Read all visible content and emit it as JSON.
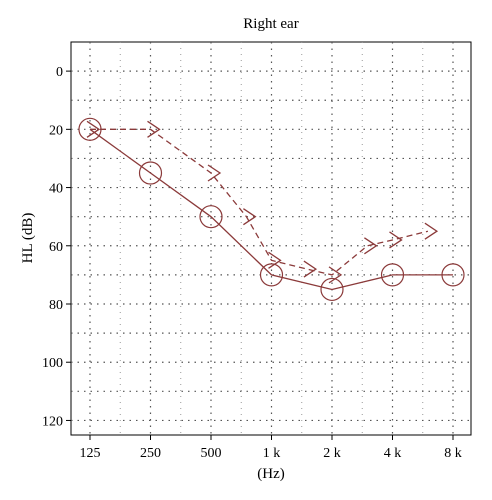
{
  "chart_data": {
    "type": "line",
    "title": "Right ear",
    "xlabel": "(Hz)",
    "ylabel": "HL (dB)",
    "x_categories": [
      "125",
      "250",
      "500",
      "1 k",
      "2 k",
      "4 k",
      "8 k"
    ],
    "y_ticks": [
      0,
      20,
      40,
      60,
      80,
      100,
      120
    ],
    "ylim": [
      -10,
      125
    ],
    "y_inverted": true,
    "grid": true,
    "series_color": "#8b3a3a",
    "series": [
      {
        "marker": "circle",
        "line_style": "solid",
        "x": [
          "125",
          "250",
          "500",
          "1 k",
          "2 k",
          "4 k",
          "8 k"
        ],
        "values": [
          20,
          35,
          50,
          70,
          75,
          70,
          70
        ]
      },
      {
        "marker": "chevron-right",
        "line_style": "dashed",
        "x": [
          "125",
          "250",
          "500",
          "750",
          "1 k",
          "1.5 k",
          "2 k",
          "3 k",
          "4 k",
          "6 k"
        ],
        "values": [
          20,
          20,
          35,
          50,
          65,
          68,
          70,
          60,
          58,
          55
        ]
      }
    ]
  }
}
